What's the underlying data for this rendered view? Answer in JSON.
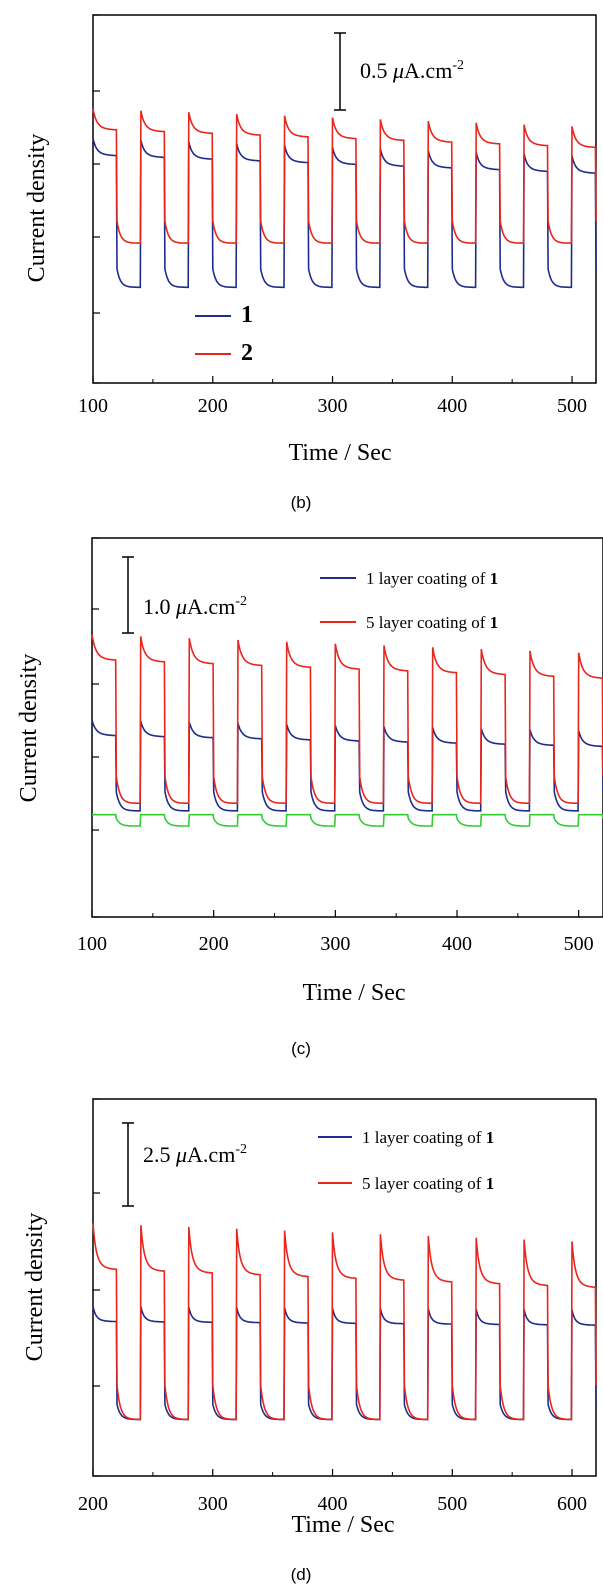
{
  "chart_data": [
    {
      "type": "line",
      "panel_label": "(b)",
      "xlabel": "Time / Sec",
      "ylabel": "Current density",
      "xlim": [
        100,
        520
      ],
      "ylim": [
        0,
        1.0
      ],
      "x_ticks": [
        100,
        200,
        300,
        400,
        500
      ],
      "x_tick_labels": [
        "100",
        "200",
        "300",
        "400",
        "500"
      ],
      "scale_bar": {
        "base": "0.5 ",
        "unit": "μA.cm",
        "exp": "-2",
        "value": 0.5
      },
      "legend": {
        "position": "bottom-left",
        "style": "big"
      },
      "series": [
        {
          "name": "1",
          "color": "#1f2d8a",
          "on": 0.65,
          "off": 0.26,
          "spike": 0.015,
          "decay": 0.03,
          "drift": -0.05
        },
        {
          "name": "2",
          "color": "#e8261e",
          "on": 0.73,
          "off": 0.38,
          "spike": 0.015,
          "decay": 0.04,
          "drift": -0.05
        }
      ],
      "light_on_times": [
        100,
        140,
        180,
        220,
        260,
        300,
        340,
        380,
        420,
        460,
        500
      ],
      "light_off_times": [
        120,
        160,
        200,
        240,
        280,
        320,
        360,
        400,
        440,
        480,
        520
      ]
    },
    {
      "type": "line",
      "panel_label": "(c)",
      "xlabel": "Time / Sec",
      "ylabel": "Current density",
      "xlim": [
        100,
        520
      ],
      "ylim": [
        0,
        1.0
      ],
      "x_ticks": [
        100,
        200,
        300,
        400,
        500
      ],
      "x_tick_labels": [
        "100",
        "200",
        "300",
        "400",
        "500"
      ],
      "scale_bar": {
        "base": "1.0 ",
        "unit": "μA.cm",
        "exp": "-2",
        "value": 1.0
      },
      "legend": {
        "position": "top-right",
        "style": "small"
      },
      "series": [
        {
          "name": "1 layer coating of 1",
          "color": "#1f2d8a",
          "on": 0.51,
          "off": 0.28,
          "spike": 0.01,
          "decay": 0.03,
          "drift": -0.03
        },
        {
          "name": "5 layer coating of 1",
          "color": "#e8261e",
          "on": 0.73,
          "off": 0.3,
          "spike": 0.015,
          "decay": 0.05,
          "drift": -0.05
        },
        {
          "color": "#33cc33",
          "on": 0.27,
          "off": 0.24,
          "spike": 0.0,
          "decay": 0.0,
          "drift": 0.0
        }
      ],
      "light_on_times": [
        100,
        140,
        180,
        220,
        260,
        300,
        340,
        380,
        420,
        460,
        500
      ],
      "light_off_times": [
        120,
        160,
        200,
        240,
        280,
        320,
        360,
        400,
        440,
        480,
        520
      ]
    },
    {
      "type": "line",
      "panel_label": "(d)",
      "xlabel": "Time / Sec",
      "ylabel": "Current density",
      "xlim": [
        200,
        620
      ],
      "ylim": [
        0,
        1.0
      ],
      "x_ticks": [
        200,
        300,
        400,
        500,
        600
      ],
      "x_tick_labels": [
        "200",
        "300",
        "400",
        "500",
        "600"
      ],
      "scale_bar": {
        "base": "2.5 ",
        "unit": "μA.cm",
        "exp": "-2",
        "value": 2.5
      },
      "legend": {
        "position": "top-right",
        "style": "small"
      },
      "series": [
        {
          "name": "1 layer coating of 1",
          "color": "#1f2d8a",
          "on": 0.43,
          "off": 0.15,
          "spike": 0.02,
          "decay": 0.02,
          "drift": -0.01
        },
        {
          "name": "5 layer coating of 1",
          "color": "#e8261e",
          "on": 0.62,
          "off": 0.15,
          "spike": 0.05,
          "decay": 0.07,
          "drift": -0.05
        }
      ],
      "light_on_times": [
        200,
        240,
        280,
        320,
        360,
        400,
        440,
        480,
        520,
        560,
        600
      ],
      "light_off_times": [
        220,
        260,
        300,
        340,
        380,
        420,
        460,
        500,
        540,
        580,
        620
      ]
    }
  ]
}
